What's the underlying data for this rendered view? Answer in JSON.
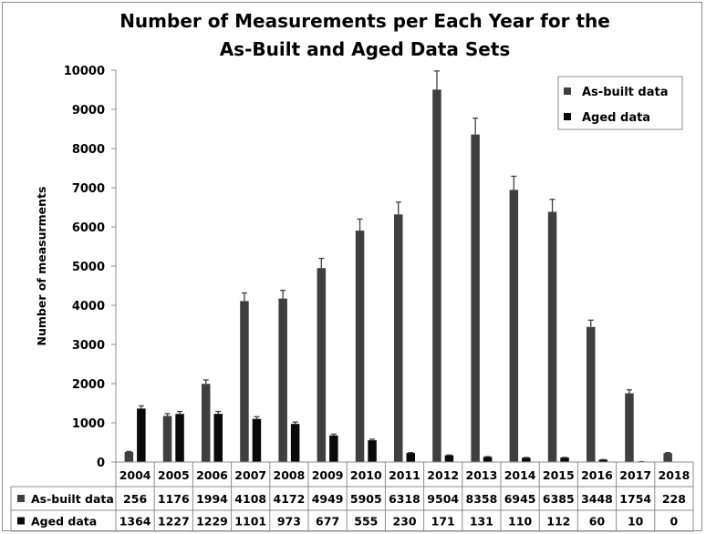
{
  "chart_data": {
    "type": "bar",
    "title_lines": [
      "Number of Measurements per Each Year for the",
      "As-Built and Aged Data Sets"
    ],
    "ylabel": "Number of measurments",
    "xlabel": "",
    "ylim": [
      0,
      10000
    ],
    "yticks": [
      "0",
      "1000",
      "2000",
      "3000",
      "4000",
      "5000",
      "6000",
      "7000",
      "8000",
      "9000",
      "10000"
    ],
    "categories": [
      "2004",
      "2005",
      "2006",
      "2007",
      "2008",
      "2009",
      "2010",
      "2011",
      "2012",
      "2013",
      "2014",
      "2015",
      "2016",
      "2017",
      "2018"
    ],
    "series": [
      {
        "name": "As-built data",
        "color": "#3f3f3f",
        "values": [
          256,
          1176,
          1994,
          4108,
          4172,
          4949,
          5905,
          6318,
          9504,
          8358,
          6945,
          6385,
          3448,
          1754,
          228
        ],
        "value_labels": [
          "256",
          "1176",
          "1994",
          "4108",
          "4172",
          "4949",
          "5905",
          "6318",
          "9504",
          "8358",
          "6945",
          "6385",
          "3448",
          "1754",
          "228"
        ]
      },
      {
        "name": "Aged data",
        "color": "#0a0a0a",
        "values": [
          1364,
          1227,
          1229,
          1101,
          973,
          677,
          555,
          230,
          171,
          131,
          110,
          112,
          60,
          10,
          0
        ],
        "value_labels": [
          "1364",
          "1227",
          "1229",
          "1101",
          "973",
          "677",
          "555",
          "230",
          "171",
          "131",
          "110",
          "112",
          "60",
          "10",
          "0"
        ]
      }
    ],
    "error_bars": "±5%",
    "grid": false,
    "legend_position": "top-right",
    "data_table": true
  }
}
